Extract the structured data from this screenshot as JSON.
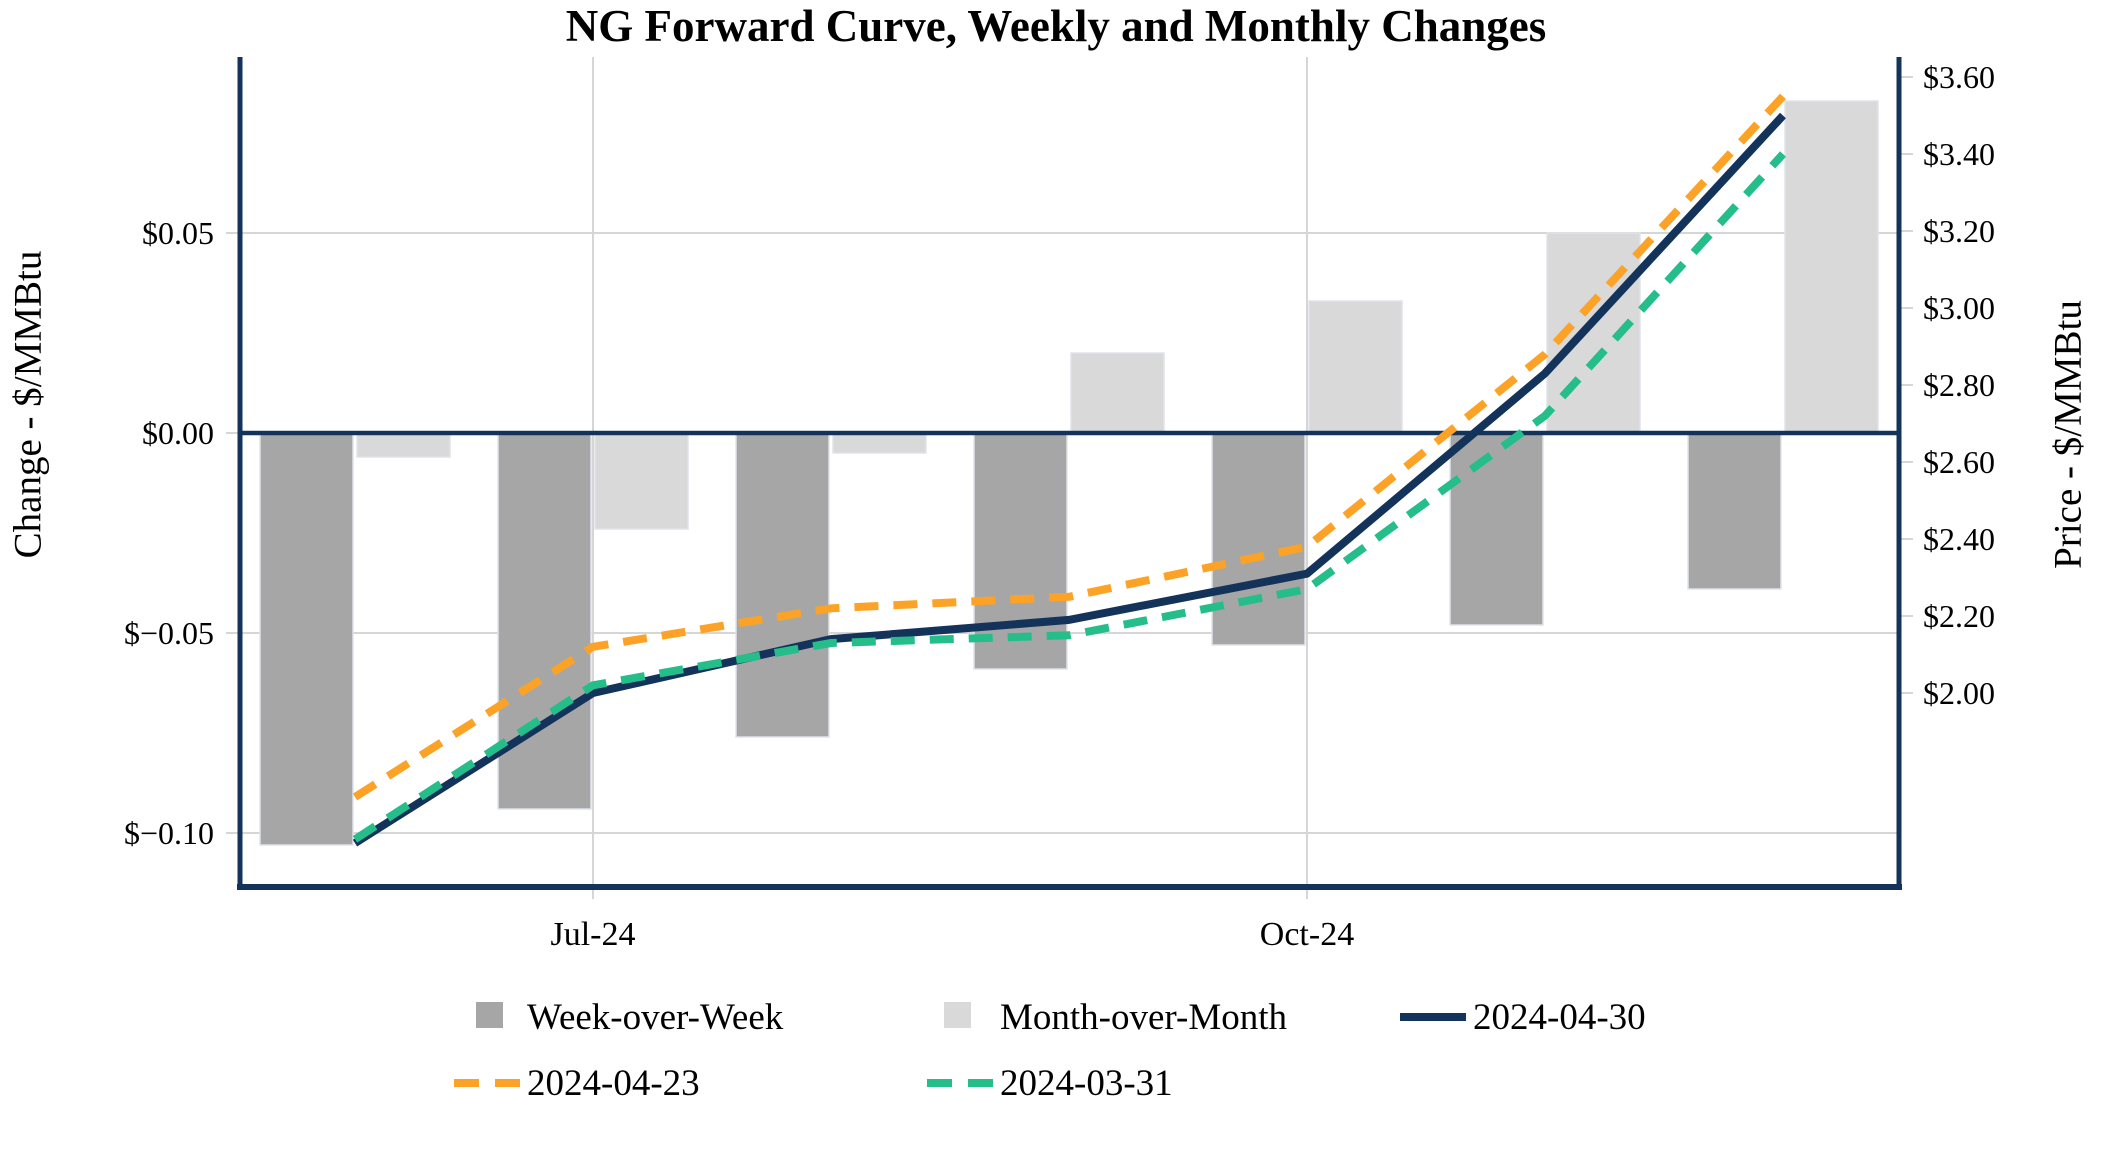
{
  "chart_title": "NG Forward Curve, Weekly and Monthly Changes",
  "chart_data": {
    "type": "combo bar+line",
    "title": "NG Forward Curve, Weekly and Monthly Changes",
    "num_months": 7,
    "x_tick_labels": [
      {
        "month_index": 1,
        "label": "Jul-24"
      },
      {
        "month_index": 4,
        "label": "Oct-24"
      }
    ],
    "left_axis": {
      "label": "Change - $/MMBtu",
      "tick_labels": [
        "$0.05",
        "$0.00",
        "$−0.05",
        "$−0.10"
      ],
      "tick_values": [
        0.05,
        0.0,
        -0.05,
        -0.1
      ],
      "approx_range": [
        -0.114,
        0.094
      ],
      "grid": true
    },
    "right_axis": {
      "label": "Price - $/MMBtu",
      "tick_labels": [
        "$3.60",
        "$3.40",
        "$3.20",
        "$3.00",
        "$2.80",
        "$2.60",
        "$2.40",
        "$2.20",
        "$2.00"
      ],
      "tick_values": [
        3.6,
        3.4,
        3.2,
        3.0,
        2.8,
        2.6,
        2.4,
        2.2,
        2.0
      ],
      "grid": false
    },
    "bar_series": [
      {
        "name": "Week-over-Week",
        "axis": "left",
        "color": "#A6A6A6",
        "values": [
          -0.103,
          -0.094,
          -0.076,
          -0.059,
          -0.053,
          -0.048,
          -0.039
        ]
      },
      {
        "name": "Month-over-Month",
        "axis": "left",
        "color": "#D9D9D9",
        "values": [
          -0.006,
          -0.024,
          -0.005,
          0.02,
          0.033,
          0.05,
          0.083
        ]
      }
    ],
    "line_series": [
      {
        "name": "2024-04-30",
        "axis": "right",
        "color": "#14335A",
        "style": "solid",
        "values": [
          1.61,
          2.0,
          2.14,
          2.19,
          2.31,
          2.83,
          3.5
        ]
      },
      {
        "name": "2024-04-23",
        "axis": "right",
        "color": "#FCA327",
        "style": "dashed",
        "values": [
          1.73,
          2.12,
          2.22,
          2.25,
          2.38,
          2.88,
          3.55
        ]
      },
      {
        "name": "2024-03-31",
        "axis": "right",
        "color": "#25BE8B",
        "style": "dashed",
        "values": [
          1.62,
          2.02,
          2.13,
          2.15,
          2.27,
          2.72,
          3.4
        ]
      }
    ],
    "zero_line_color": "#14335A",
    "grid_color": "#D6D6D6",
    "spine_color": "#14335A",
    "legend_position": "bottom"
  },
  "legend": {
    "week_over_week": "Week-over-Week",
    "month_over_month": "Month-over-Month",
    "line_2024_04_30": "2024-04-30",
    "line_2024_04_23": "2024-04-23",
    "line_2024_03_31": "2024-03-31"
  },
  "axes_labels": {
    "left": "Change - $/MMBtu",
    "right": "Price - $/MMBtu"
  },
  "colors": {
    "wow_bar": "#A6A6A6",
    "mom_bar": "#D9D9D9",
    "navy": "#14335A",
    "orange": "#FCA327",
    "green": "#25BE8B",
    "grid": "#D6D6D6"
  }
}
